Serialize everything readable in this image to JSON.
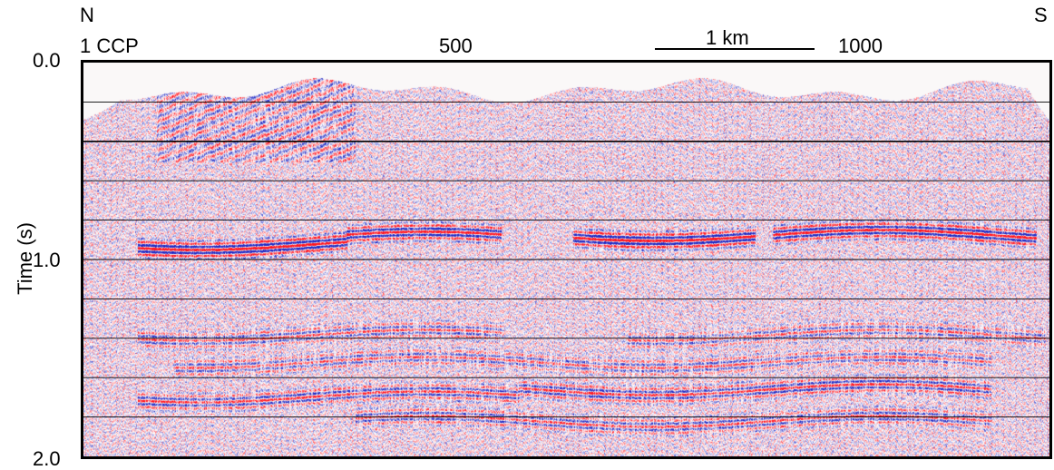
{
  "direction": {
    "left": "N",
    "right": "S"
  },
  "cdp_axis": {
    "label": "1  CCP",
    "ticks": [
      "500",
      "1000"
    ]
  },
  "scale_bar": {
    "label": "1 km"
  },
  "time_axis": {
    "label": "Time (s)",
    "ticks": [
      "0.0",
      "1.0",
      "2.0"
    ],
    "range": [
      0.0,
      2.0
    ],
    "gridlines": [
      0.2,
      0.4,
      0.6,
      0.8,
      1.0,
      1.2,
      1.4,
      1.6,
      1.8
    ]
  },
  "colors": {
    "positive": "#d02030",
    "negative": "#2030c0",
    "background": "#ffffff",
    "frame": "#000000"
  }
}
